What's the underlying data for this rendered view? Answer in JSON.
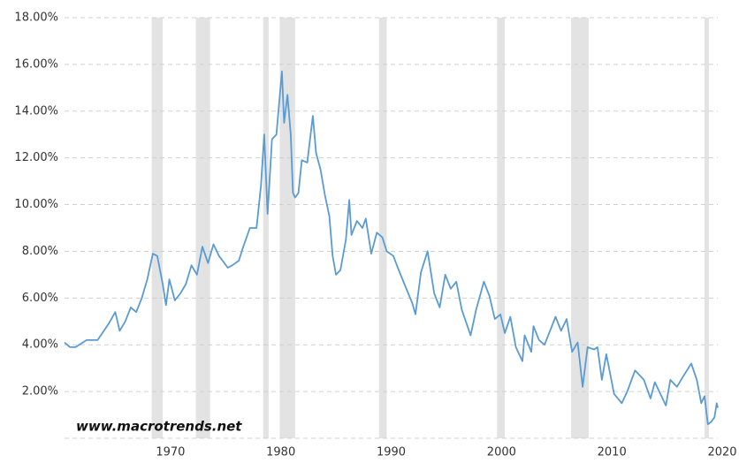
{
  "chart_data": {
    "type": "line",
    "watermark": "www.macrotrends.net",
    "color": "#5a9bd4",
    "recession_color": "#e3e3e3",
    "grid": true,
    "xlim": [
      1962,
      2021.2
    ],
    "xticks": [
      1970,
      1980,
      1990,
      2000,
      2010,
      2020
    ],
    "ylim": [
      0,
      18
    ],
    "yticks": [
      {
        "value": 2,
        "label": "2.00%"
      },
      {
        "value": 4,
        "label": "4.00%"
      },
      {
        "value": 6,
        "label": "6.00%"
      },
      {
        "value": 8,
        "label": "8.00%"
      },
      {
        "value": 10,
        "label": "10.00%"
      },
      {
        "value": 12,
        "label": "12.00%"
      },
      {
        "value": 14,
        "label": "14.00%"
      },
      {
        "value": 16,
        "label": "16.00%"
      },
      {
        "value": 18,
        "label": "18.00%"
      }
    ],
    "recessions": [
      [
        1969.9,
        1970.9
      ],
      [
        1973.9,
        1975.2
      ],
      [
        1980.0,
        1980.5
      ],
      [
        1981.5,
        1982.9
      ],
      [
        1990.5,
        1991.2
      ],
      [
        2001.2,
        2001.9
      ],
      [
        2007.9,
        2009.5
      ],
      [
        2020.0,
        2020.4
      ]
    ],
    "x": [
      1962,
      1962.5,
      1963,
      1964,
      1965,
      1966,
      1966.6,
      1967,
      1967.5,
      1968,
      1968.5,
      1969,
      1969.5,
      1970,
      1970.4,
      1970.9,
      1971.2,
      1971.5,
      1972,
      1972.5,
      1973,
      1973.5,
      1974,
      1974.5,
      1975,
      1975.5,
      1976,
      1976.8,
      1977.2,
      1977.8,
      1978.2,
      1978.8,
      1979.4,
      1979.8,
      1980.1,
      1980.4,
      1980.8,
      1981.2,
      1981.7,
      1981.9,
      1982.2,
      1982.5,
      1982.7,
      1982.9,
      1983.2,
      1983.5,
      1984,
      1984.5,
      1984.8,
      1985.2,
      1985.6,
      1986,
      1986.3,
      1986.6,
      1987,
      1987.5,
      1987.8,
      1988,
      1988.5,
      1989,
      1989.3,
      1989.8,
      1990.3,
      1990.8,
      1991.2,
      1991.8,
      1992.2,
      1992.8,
      1993.5,
      1993.8,
      1994.3,
      1994.9,
      1995.5,
      1996,
      1996.5,
      1997,
      1997.5,
      1998,
      1998.8,
      1999.3,
      2000,
      2000.5,
      2001,
      2001.5,
      2001.9,
      2002.4,
      2002.9,
      2003.5,
      2003.7,
      2004.3,
      2004.5,
      2005,
      2005.5,
      2006.5,
      2007,
      2007.5,
      2008,
      2008.5,
      2008.95,
      2009.4,
      2010,
      2010.3,
      2010.7,
      2011.1,
      2011.8,
      2012.5,
      2013,
      2013.7,
      2014.5,
      2015.1,
      2015.5,
      2016.5,
      2016.9,
      2017.5,
      2018,
      2018.8,
      2019.3,
      2019.7,
      2020,
      2020.3,
      2020.6,
      2020.9,
      2021.1,
      2021.2
    ],
    "values": [
      4.1,
      3.9,
      3.9,
      4.2,
      4.2,
      4.9,
      5.4,
      4.6,
      5.0,
      5.6,
      5.4,
      6.0,
      6.8,
      7.9,
      7.8,
      6.6,
      5.7,
      6.8,
      5.9,
      6.2,
      6.6,
      7.4,
      7.0,
      8.2,
      7.5,
      8.3,
      7.8,
      7.3,
      7.4,
      7.6,
      8.2,
      9.0,
      9.0,
      10.8,
      13.0,
      9.6,
      12.8,
      13.0,
      15.7,
      13.5,
      14.7,
      13.0,
      10.5,
      10.3,
      10.5,
      11.9,
      11.8,
      13.8,
      12.2,
      11.5,
      10.4,
      9.5,
      7.8,
      7.0,
      7.2,
      8.5,
      10.2,
      8.7,
      9.3,
      9.0,
      9.4,
      7.9,
      8.8,
      8.6,
      8.0,
      7.8,
      7.3,
      6.6,
      5.8,
      5.3,
      7.1,
      8.0,
      6.2,
      5.6,
      7.0,
      6.4,
      6.7,
      5.5,
      4.4,
      5.5,
      6.7,
      6.1,
      5.1,
      5.3,
      4.5,
      5.2,
      3.9,
      3.3,
      4.4,
      3.7,
      4.8,
      4.2,
      4.0,
      5.2,
      4.6,
      5.1,
      3.7,
      4.1,
      2.2,
      3.9,
      3.8,
      3.9,
      2.5,
      3.6,
      1.9,
      1.5,
      2.0,
      2.9,
      2.5,
      1.7,
      2.4,
      1.4,
      2.5,
      2.2,
      2.6,
      3.2,
      2.5,
      1.5,
      1.8,
      0.6,
      0.7,
      0.9,
      1.5,
      1.3
    ]
  }
}
